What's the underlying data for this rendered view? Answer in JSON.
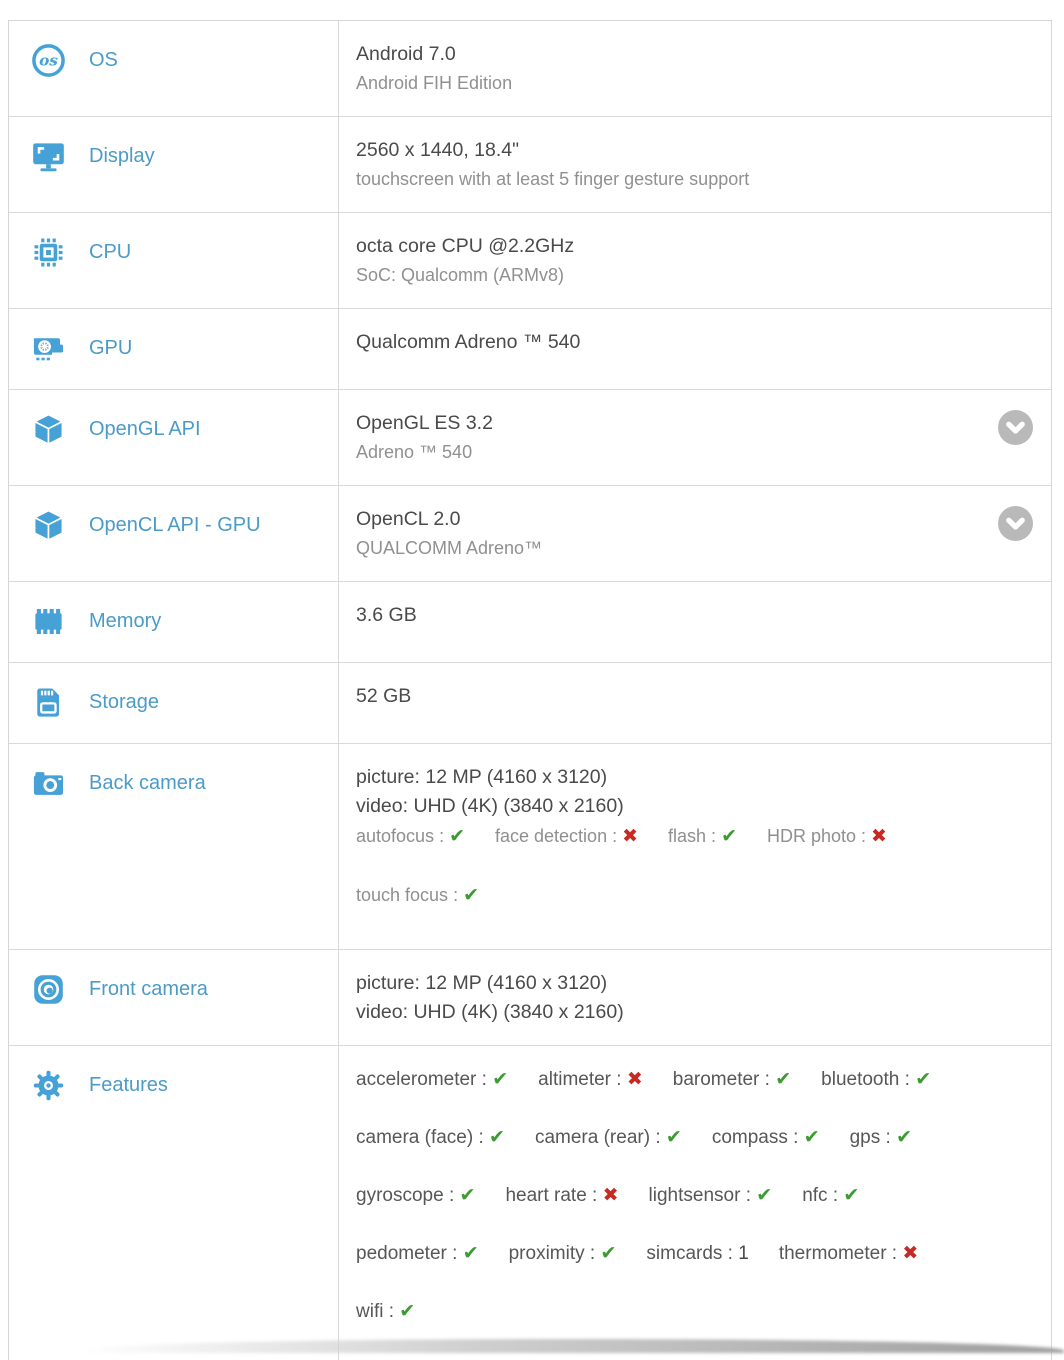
{
  "glyphs": {
    "check": "✔",
    "cross": "✖",
    "separator": " : "
  },
  "colors": {
    "icon_blue": "#46a1d6",
    "label_blue": "#4b9bc8",
    "main_text": "#4a4a4a",
    "sub_text": "#909090",
    "check_green": "#3c9b31",
    "cross_red": "#c62a22",
    "border": "#d9d9d9",
    "chevron_gray": "#b9b9b9"
  },
  "table": {
    "rows": [
      {
        "key": "os",
        "icon": "os-icon",
        "label": "OS",
        "expandable": false,
        "content": [
          {
            "type": "main",
            "text": "Android 7.0"
          },
          {
            "type": "sub",
            "text": "Android FIH Edition"
          }
        ]
      },
      {
        "key": "display",
        "icon": "display-icon",
        "label": "Display",
        "expandable": false,
        "content": [
          {
            "type": "main",
            "text": "2560 x 1440, 18.4\""
          },
          {
            "type": "sub",
            "text": "touchscreen with at least 5 finger gesture support"
          }
        ]
      },
      {
        "key": "cpu",
        "icon": "cpu-icon",
        "label": "CPU",
        "expandable": false,
        "content": [
          {
            "type": "main",
            "text": "octa core CPU @2.2GHz"
          },
          {
            "type": "sub",
            "text": "SoC: Qualcomm (ARMv8)"
          }
        ]
      },
      {
        "key": "gpu",
        "icon": "gpu-icon",
        "label": "GPU",
        "expandable": false,
        "content": [
          {
            "type": "main",
            "text": "Qualcomm Adreno ™ 540"
          }
        ]
      },
      {
        "key": "opengl-api",
        "icon": "cube-icon",
        "label": "OpenGL API",
        "expandable": true,
        "content": [
          {
            "type": "main",
            "text": "OpenGL ES 3.2"
          },
          {
            "type": "sub",
            "text": "Adreno ™ 540"
          }
        ]
      },
      {
        "key": "opencl-api-gpu",
        "icon": "cube-icon",
        "label": "OpenCL API - GPU",
        "expandable": true,
        "content": [
          {
            "type": "main",
            "text": "OpenCL 2.0"
          },
          {
            "type": "sub",
            "text": "QUALCOMM Adreno™"
          }
        ]
      },
      {
        "key": "memory",
        "icon": "memory-icon",
        "label": "Memory",
        "expandable": false,
        "content": [
          {
            "type": "main",
            "text": "3.6 GB"
          }
        ]
      },
      {
        "key": "storage",
        "icon": "storage-icon",
        "label": "Storage",
        "expandable": false,
        "content": [
          {
            "type": "main",
            "text": "52 GB"
          }
        ]
      },
      {
        "key": "back-camera",
        "icon": "back-camera-icon",
        "label": "Back camera",
        "expandable": false,
        "content": [
          {
            "type": "main",
            "text": "picture: 12 MP (4160 x 3120)"
          },
          {
            "type": "main",
            "text": "video: UHD (4K) (3840 x 2160)"
          },
          {
            "type": "features",
            "tone": "subtone",
            "items": [
              {
                "label": "autofocus",
                "value": "yes"
              },
              {
                "label": "face detection",
                "value": "no"
              },
              {
                "label": "flash",
                "value": "yes"
              },
              {
                "label": "HDR photo",
                "value": "no"
              }
            ]
          },
          {
            "type": "features",
            "tone": "subtone",
            "gap_above": true,
            "items": [
              {
                "label": "touch focus",
                "value": "yes"
              }
            ]
          }
        ]
      },
      {
        "key": "front-camera",
        "icon": "front-camera-icon",
        "label": "Front camera",
        "expandable": false,
        "content": [
          {
            "type": "main",
            "text": "picture: 12 MP (4160 x 3120)"
          },
          {
            "type": "main",
            "text": "video: UHD (4K) (3840 x 2160)"
          }
        ]
      },
      {
        "key": "features",
        "icon": "features-icon",
        "label": "Features",
        "expandable": false,
        "content": [
          {
            "type": "features",
            "tone": "plain",
            "items": [
              {
                "label": "accelerometer",
                "value": "yes"
              },
              {
                "label": "altimeter",
                "value": "no"
              },
              {
                "label": "barometer",
                "value": "yes"
              },
              {
                "label": "bluetooth",
                "value": "yes"
              }
            ]
          },
          {
            "type": "features",
            "tone": "plain",
            "items": [
              {
                "label": "camera (face)",
                "value": "yes"
              },
              {
                "label": "camera (rear)",
                "value": "yes"
              },
              {
                "label": "compass",
                "value": "yes"
              },
              {
                "label": "gps",
                "value": "yes"
              }
            ]
          },
          {
            "type": "features",
            "tone": "plain",
            "items": [
              {
                "label": "gyroscope",
                "value": "yes"
              },
              {
                "label": "heart rate",
                "value": "no"
              },
              {
                "label": "lightsensor",
                "value": "yes"
              },
              {
                "label": "nfc",
                "value": "yes"
              }
            ]
          },
          {
            "type": "features",
            "tone": "plain",
            "items": [
              {
                "label": "pedometer",
                "value": "yes"
              },
              {
                "label": "proximity",
                "value": "yes"
              },
              {
                "label": "simcards",
                "value": "1"
              },
              {
                "label": "thermometer",
                "value": "no"
              }
            ]
          },
          {
            "type": "features",
            "tone": "plain",
            "items": [
              {
                "label": "wifi",
                "value": "yes"
              }
            ]
          }
        ]
      }
    ]
  }
}
